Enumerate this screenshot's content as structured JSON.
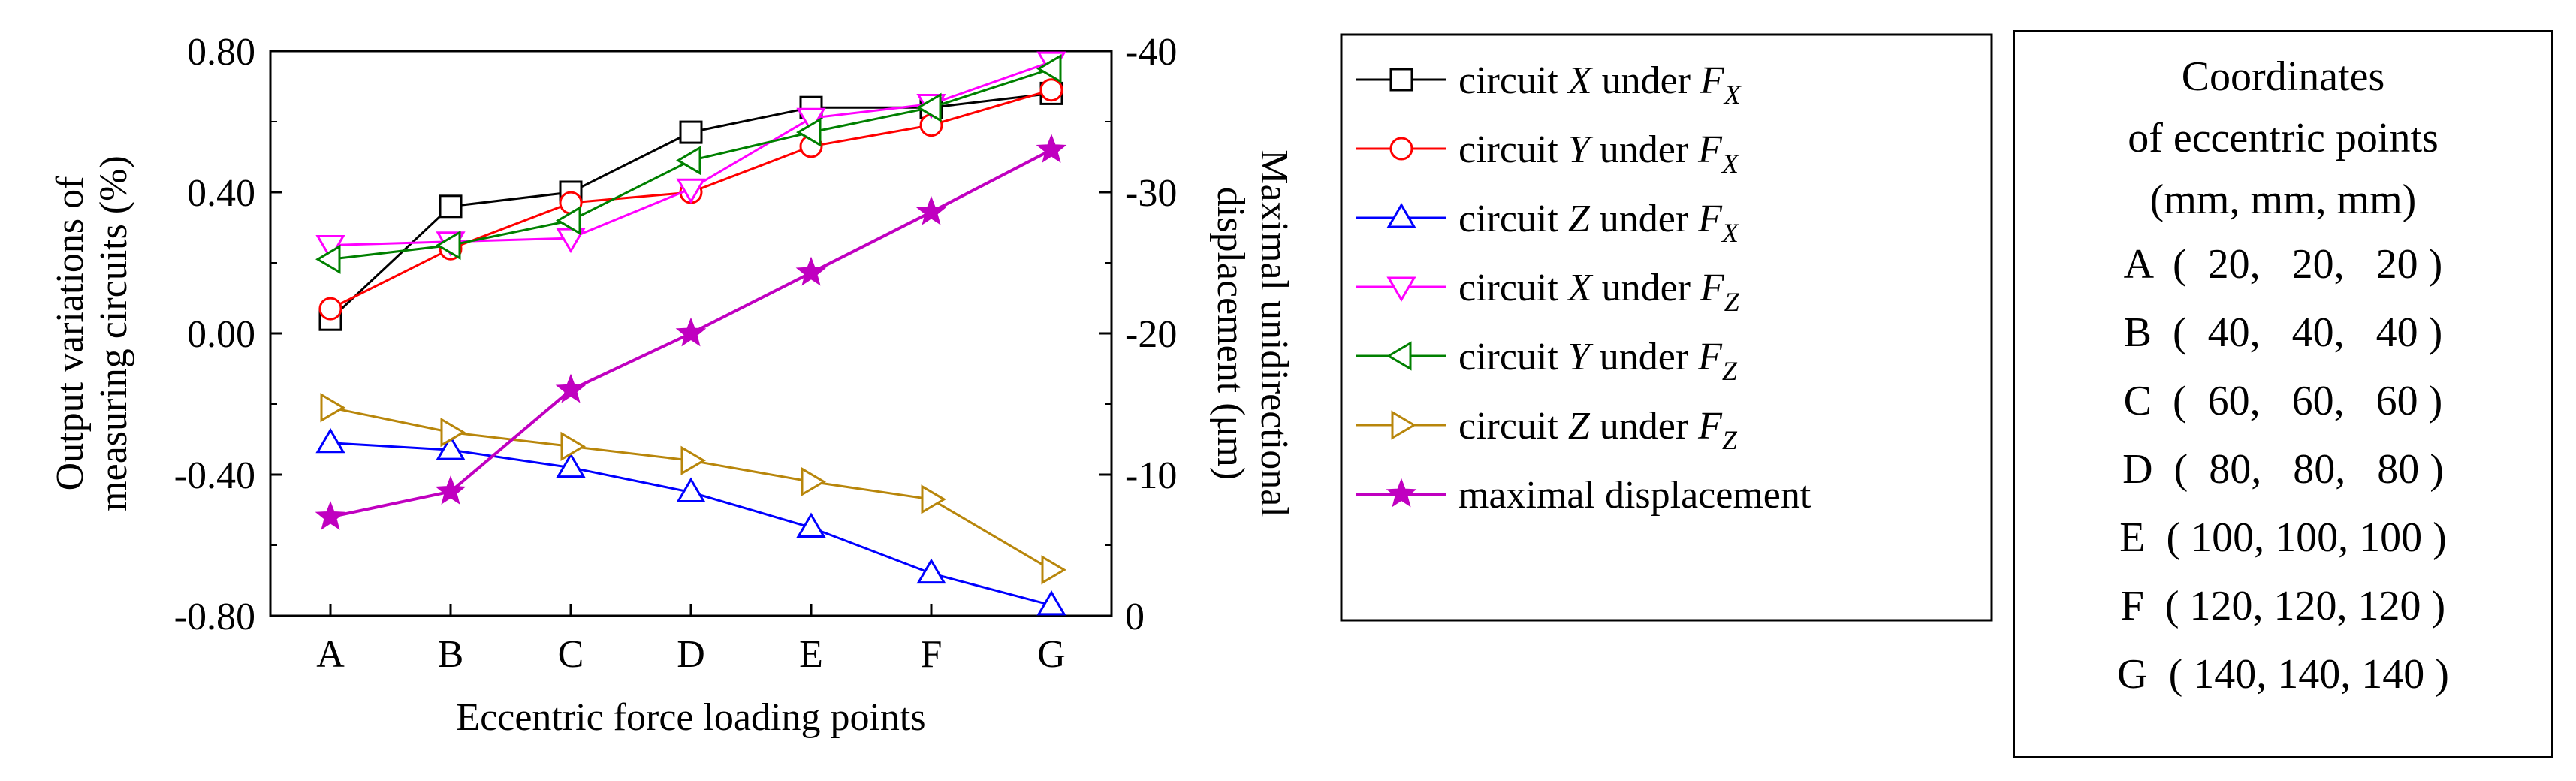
{
  "chart_data": {
    "type": "line",
    "categories": [
      "A",
      "B",
      "C",
      "D",
      "E",
      "F",
      "G"
    ],
    "xlabel": "Eccentric force loading points",
    "ylabel_left": [
      "Output variations of",
      "measuring circuits  (%)"
    ],
    "ylabel_right": [
      "Maximal unidirectional",
      "displacement (μm)"
    ],
    "ylim_left": [
      -0.8,
      0.8
    ],
    "yticks_left": [
      "0.80",
      "0.40",
      "0.00",
      "-0.40",
      "-0.80"
    ],
    "ylim_right": [
      0,
      -40
    ],
    "yticks_right": [
      "-40",
      "-30",
      "-20",
      "-10",
      "0"
    ],
    "series": [
      {
        "name": "circuit X under FX",
        "label_circuit": "circuit ",
        "label_axis": "X",
        "label_under": " under ",
        "label_force": "F",
        "label_sub": "X",
        "axis": "left",
        "marker": "square",
        "color": "#000000",
        "values": [
          0.04,
          0.36,
          0.4,
          0.57,
          0.64,
          0.64,
          0.68
        ]
      },
      {
        "name": "circuit Y under FX",
        "label_circuit": "circuit ",
        "label_axis": "Y",
        "label_under": " under ",
        "label_force": "F",
        "label_sub": "X",
        "axis": "left",
        "marker": "circle",
        "color": "#ff0000",
        "values": [
          0.07,
          0.24,
          0.37,
          0.4,
          0.53,
          0.59,
          0.69
        ]
      },
      {
        "name": "circuit Z under FX",
        "label_circuit": "circuit ",
        "label_axis": "Z",
        "label_under": " under ",
        "label_force": "F",
        "label_sub": "X",
        "axis": "left",
        "marker": "triangle-up",
        "color": "#0000ff",
        "values": [
          -0.31,
          -0.33,
          -0.38,
          -0.45,
          -0.55,
          -0.68,
          -0.77
        ]
      },
      {
        "name": "circuit X under FZ",
        "label_circuit": "circuit ",
        "label_axis": "X",
        "label_under": " under ",
        "label_force": "F",
        "label_sub": "Z",
        "axis": "left",
        "marker": "triangle-down",
        "color": "#ff00ff",
        "values": [
          0.25,
          0.26,
          0.27,
          0.41,
          0.61,
          0.65,
          0.77
        ]
      },
      {
        "name": "circuit Y under FZ",
        "label_circuit": "circuit ",
        "label_axis": "Y",
        "label_under": " under ",
        "label_force": "F",
        "label_sub": "Z",
        "axis": "left",
        "marker": "triangle-left",
        "color": "#008000",
        "values": [
          0.21,
          0.25,
          0.32,
          0.49,
          0.57,
          0.64,
          0.75
        ]
      },
      {
        "name": "circuit Z under FZ",
        "label_circuit": "circuit ",
        "label_axis": "Z",
        "label_under": " under ",
        "label_force": "F",
        "label_sub": "Z",
        "axis": "left",
        "marker": "triangle-right",
        "color": "#b8860b",
        "values": [
          -0.21,
          -0.28,
          -0.32,
          -0.36,
          -0.42,
          -0.47,
          -0.67
        ]
      },
      {
        "name": "maximal displacement",
        "label_circuit": "maximal displacement",
        "axis": "right",
        "marker": "star",
        "color": "#c000c0",
        "values": [
          -7.0,
          -8.8,
          -16.0,
          -20.0,
          -24.3,
          -28.6,
          -33.0
        ]
      }
    ],
    "legend_position": "right, outside plot"
  },
  "coordinates_box": {
    "title_lines": [
      "Coordinates",
      "of eccentric points",
      "(mm, mm, mm)"
    ],
    "rows": [
      "A  (  20,   20,   20 )",
      "B  (  40,   40,   40 )",
      "C  (  60,   60,   60 )",
      "D  (  80,   80,   80 )",
      "E  ( 100, 100, 100 )",
      "F  ( 120, 120, 120 )",
      "G  ( 140, 140, 140 )"
    ]
  }
}
